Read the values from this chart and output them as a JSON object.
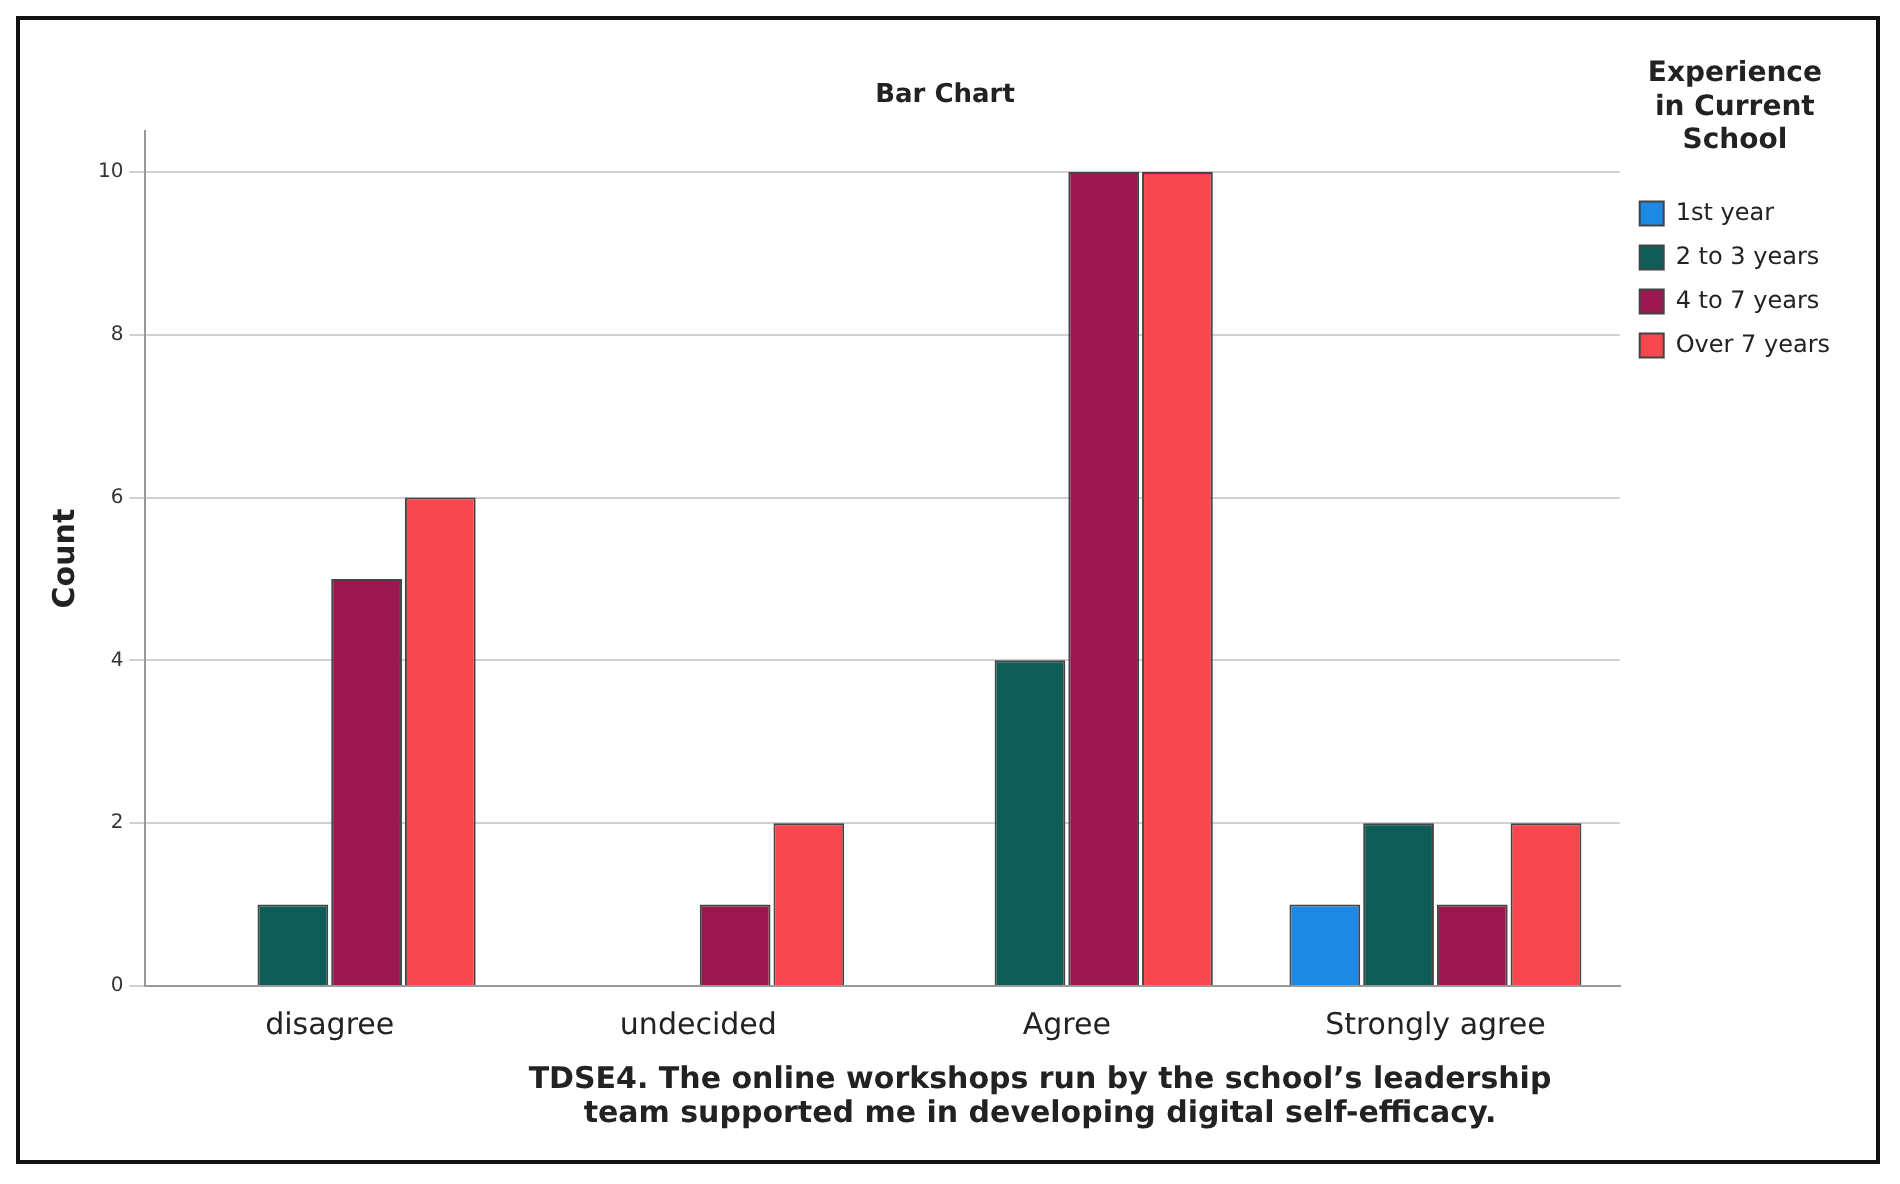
{
  "chart_data": {
    "type": "bar",
    "title": "Bar Chart",
    "xlabel": "TDSE4. The online workshops run by the school’s leadership team supported me in developing digital self-efficacy.",
    "ylabel": "Count",
    "legend_title": "Experience in Current School",
    "legend": "top right",
    "grid": "y",
    "categories": [
      "disagree",
      "undecided",
      "Agree",
      "Strongly agree"
    ],
    "ylim": [
      0,
      10.5
    ],
    "yticks": [
      0,
      2,
      4,
      6,
      8,
      10
    ],
    "series": [
      {
        "name": "1st year",
        "color": "#1e88e5",
        "values": [
          null,
          null,
          null,
          1
        ]
      },
      {
        "name": "2 to 3 years",
        "color": "#0d5c57",
        "values": [
          1,
          null,
          4,
          2
        ]
      },
      {
        "name": "4 to 7 years",
        "color": "#9b1750",
        "values": [
          5,
          1,
          10,
          1
        ]
      },
      {
        "name": "Over 7 years",
        "color": "#f8474f",
        "values": [
          6,
          2,
          10,
          2
        ]
      }
    ]
  }
}
